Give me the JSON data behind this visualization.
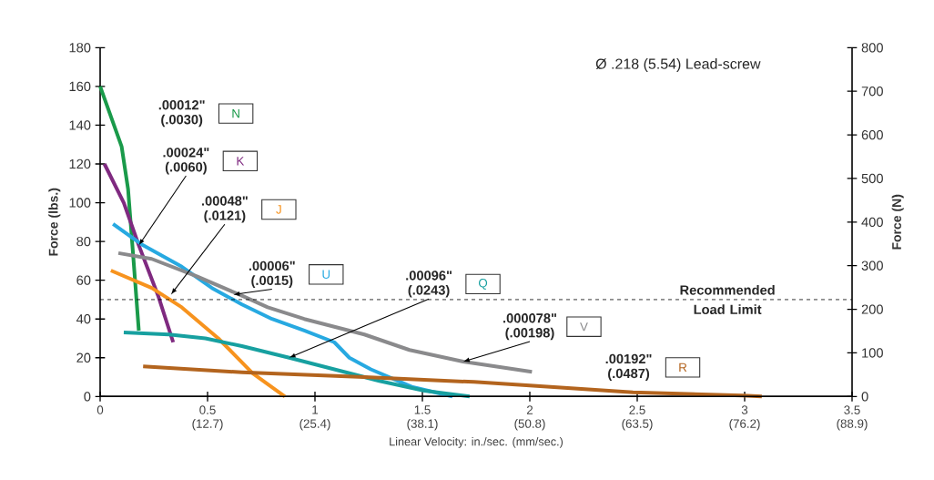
{
  "chart_data": {
    "type": "line",
    "title": "Ø .218 (5.54) Lead-screw",
    "xlabel": "Linear Velocity: in./sec. (mm/sec.)",
    "ylabel": "Force (lbs.)",
    "y2label": "Force (N)",
    "xlim": [
      0,
      3.5
    ],
    "ylim": [
      0,
      180
    ],
    "y2lim": [
      0,
      800
    ],
    "xticks": [
      0,
      0.5,
      1,
      1.5,
      2,
      2.5,
      3,
      3.5
    ],
    "x2lim": [
      0,
      88.9
    ],
    "x2ticks": [
      {
        "value": 12.7,
        "label": "(12.7)"
      },
      {
        "value": 25.4,
        "label": "(25.4)"
      },
      {
        "value": 38.1,
        "label": "(38.1)"
      },
      {
        "value": 50.8,
        "label": "(50.8)"
      },
      {
        "value": 63.5,
        "label": "(63.5)"
      },
      {
        "value": 76.2,
        "label": "(76.2)"
      },
      {
        "value": 88.9,
        "label": "(88.9)"
      }
    ],
    "yticks": [
      0,
      20,
      40,
      60,
      80,
      100,
      120,
      140,
      160,
      180
    ],
    "y2ticks": [
      0,
      100,
      200,
      300,
      400,
      500,
      600,
      700,
      800
    ],
    "grid": false,
    "legend": false,
    "marker": "none",
    "line_style": "solid",
    "series": [
      {
        "name": "N",
        "color": "#1a9a4a",
        "x": [
          0,
          0.1,
          0.13,
          0.155,
          0.18
        ],
        "values": [
          160,
          129,
          107,
          71,
          34
        ]
      },
      {
        "name": "K",
        "color": "#7f2a80",
        "x": [
          0.02,
          0.11,
          0.18,
          0.27,
          0.34
        ],
        "values": [
          120,
          100,
          78,
          52,
          28
        ]
      },
      {
        "name": "J",
        "color": "#f7931e",
        "x": [
          0.05,
          0.24,
          0.38,
          0.55,
          0.71,
          0.86
        ],
        "values": [
          65,
          56,
          46,
          30,
          12,
          0
        ]
      },
      {
        "name": "U",
        "color": "#27a9e1",
        "x": [
          0.06,
          0.2,
          0.38,
          0.52,
          0.66,
          0.8,
          0.95,
          1.09,
          1.16,
          1.26,
          1.45,
          1.64
        ],
        "values": [
          89,
          78,
          67,
          56,
          47.5,
          40,
          34,
          28,
          20,
          14,
          5,
          0
        ]
      },
      {
        "name": "Q",
        "color": "#17a0a0",
        "x": [
          0.11,
          0.32,
          0.49,
          0.66,
          0.88,
          1.09,
          1.3,
          1.51,
          1.72
        ],
        "values": [
          33,
          32,
          30,
          26,
          20,
          14,
          8,
          3,
          0
        ]
      },
      {
        "name": "V",
        "color": "#8a8a8c",
        "x": [
          0.085,
          0.24,
          0.45,
          0.66,
          0.78,
          0.95,
          1.23,
          1.44,
          1.69,
          2.01
        ],
        "values": [
          74,
          71,
          62,
          52,
          46,
          40,
          32,
          24,
          18,
          12.7
        ]
      },
      {
        "name": "R",
        "color": "#b3641e",
        "x": [
          0.2,
          0.66,
          1.23,
          1.74,
          2.0,
          2.48,
          2.99,
          3.08
        ],
        "values": [
          15.5,
          12.5,
          10,
          7.5,
          5.7,
          2.2,
          0.5,
          0
        ]
      }
    ],
    "ref_lines": [
      {
        "axis": "y",
        "value": 50,
        "label": "Recommended Load Limit",
        "line_style": "dashed",
        "color": "#000000"
      }
    ],
    "annotations": [
      ".00012\" (.0030)",
      {
        "text": ".00024\" (.0060)",
        "x": 0.18,
        "y": 78
      },
      {
        "text": ".00048\" (.0121)",
        "x": 0.33,
        "y": 52.6
      },
      {
        "text": ".00006\" (.0015)",
        "x": 0.62,
        "y": 52.6
      },
      {
        "text": ".00096\" (.0243)",
        "x": 0.88,
        "y": 20
      },
      {
        "text": ".000078\" (.00198)",
        "x": 1.69,
        "y": 18
      },
      ".00192\" (.0487)"
    ]
  }
}
